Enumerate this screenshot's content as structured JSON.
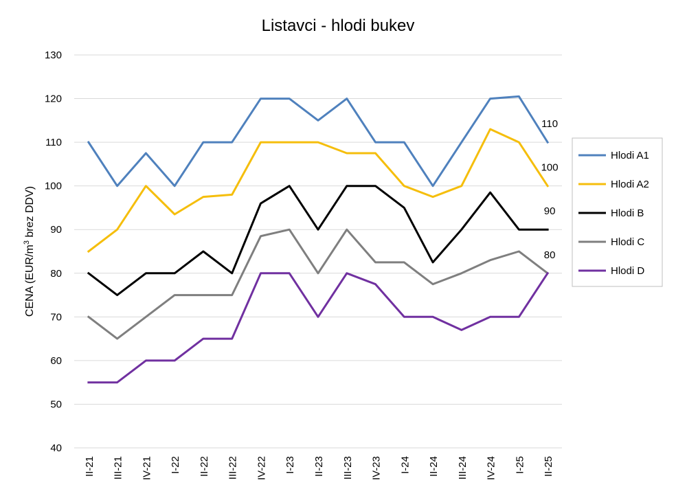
{
  "chart_data": {
    "type": "line",
    "title": "Listavci - hlodi bukev",
    "ylabel_prefix": "CENA (EUR/m",
    "ylabel_sup": "3",
    "ylabel_suffix": " brez DDV)",
    "xlabel": "",
    "ylim": [
      40,
      130
    ],
    "yticks": [
      40,
      50,
      60,
      70,
      80,
      90,
      100,
      110,
      120,
      130
    ],
    "grid": true,
    "legend_position": "right",
    "categories": [
      "II-21",
      "III-21",
      "IV-21",
      "I-22",
      "II-22",
      "III-22",
      "IV-22",
      "I-23",
      "II-23",
      "III-23",
      "IV-23",
      "I-24",
      "II-24",
      "III-24",
      "IV-24",
      "I-25",
      "II-25"
    ],
    "series": [
      {
        "name": "Hlodi A1",
        "color": "#4f81bd",
        "end_label": "110",
        "values": [
          110,
          100,
          107.5,
          100,
          110,
          110,
          120,
          120,
          115,
          120,
          110,
          110,
          100,
          110,
          120,
          120.5,
          110
        ]
      },
      {
        "name": "Hlodi A2",
        "color": "#f5be0c",
        "end_label": "100",
        "values": [
          85,
          90,
          100,
          93.5,
          97.5,
          98,
          110,
          110,
          110,
          107.5,
          107.5,
          100,
          97.5,
          100,
          113,
          110,
          100
        ]
      },
      {
        "name": "Hlodi B",
        "color": "#000000",
        "end_label": "90",
        "values": [
          80,
          75,
          80,
          80,
          85,
          80,
          96,
          100,
          90,
          100,
          100,
          95,
          82.5,
          90,
          98.5,
          90,
          90
        ]
      },
      {
        "name": "Hlodi C",
        "color": "#7f7f7f",
        "end_label": "80",
        "values": [
          70,
          65,
          70,
          75,
          75,
          75,
          88.5,
          90,
          80,
          90,
          82.5,
          82.5,
          77.5,
          80,
          83,
          85,
          80
        ]
      },
      {
        "name": "Hlodi D",
        "color": "#7030a0",
        "end_label": "",
        "values": [
          55,
          55,
          60,
          60,
          65,
          65,
          80,
          80,
          70,
          80,
          77.5,
          70,
          70,
          67,
          70,
          70,
          80
        ]
      }
    ]
  }
}
